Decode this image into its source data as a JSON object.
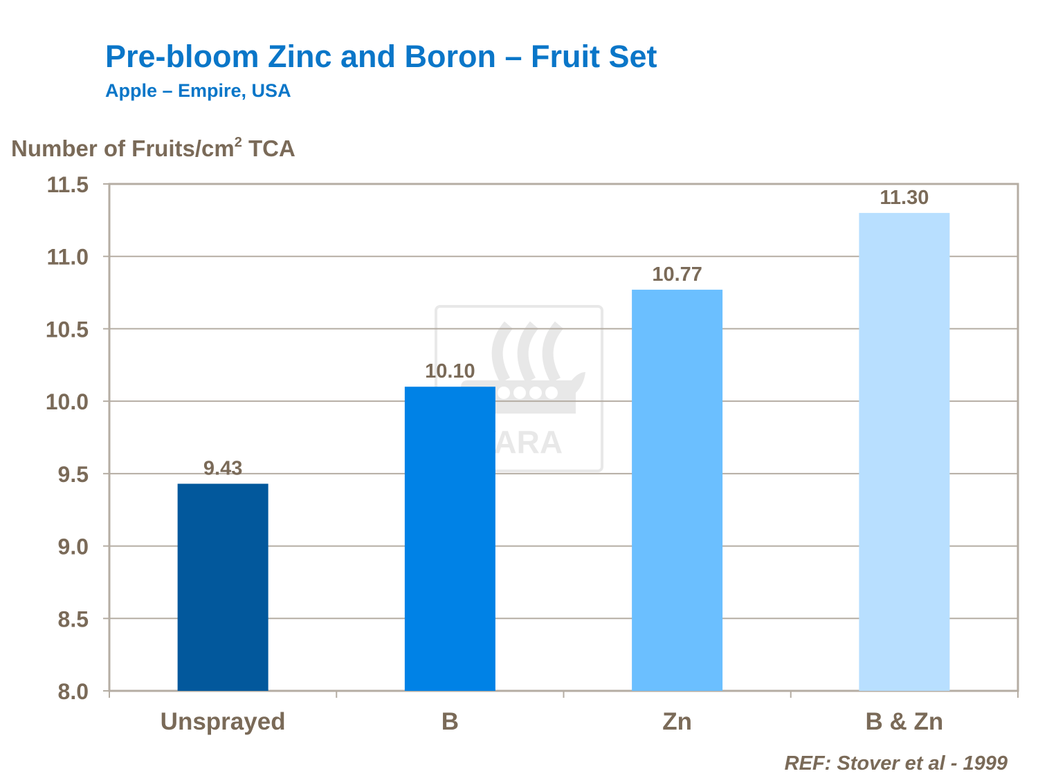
{
  "chart_data": {
    "type": "bar",
    "title": "Pre-bloom Zinc and Boron – Fruit Set",
    "subtitle": "Apple – Empire, USA",
    "ylabel": "Number of Fruits/cm",
    "ylabel_superscript": "2",
    "ylabel_suffix": " TCA",
    "xlabel": "",
    "categories": [
      "Unsprayed",
      "B",
      "Zn",
      "B & Zn"
    ],
    "values": [
      9.43,
      10.1,
      10.77,
      11.3
    ],
    "value_labels": [
      "9.43",
      "10.10",
      "10.77",
      "11.30"
    ],
    "bar_colors": [
      "#02589C",
      "#0082E6",
      "#6BBFFF",
      "#B8DFFF"
    ],
    "ylim": [
      8.0,
      11.5
    ],
    "yticks": [
      8.0,
      8.5,
      9.0,
      9.5,
      10.0,
      10.5,
      11.0,
      11.5
    ],
    "ytick_labels": [
      "8.0",
      "8.5",
      "9.0",
      "9.5",
      "10.0",
      "10.5",
      "11.0",
      "11.5"
    ],
    "grid": true,
    "reference": "REF: Stover et al - 1999",
    "watermark": "YARA"
  }
}
